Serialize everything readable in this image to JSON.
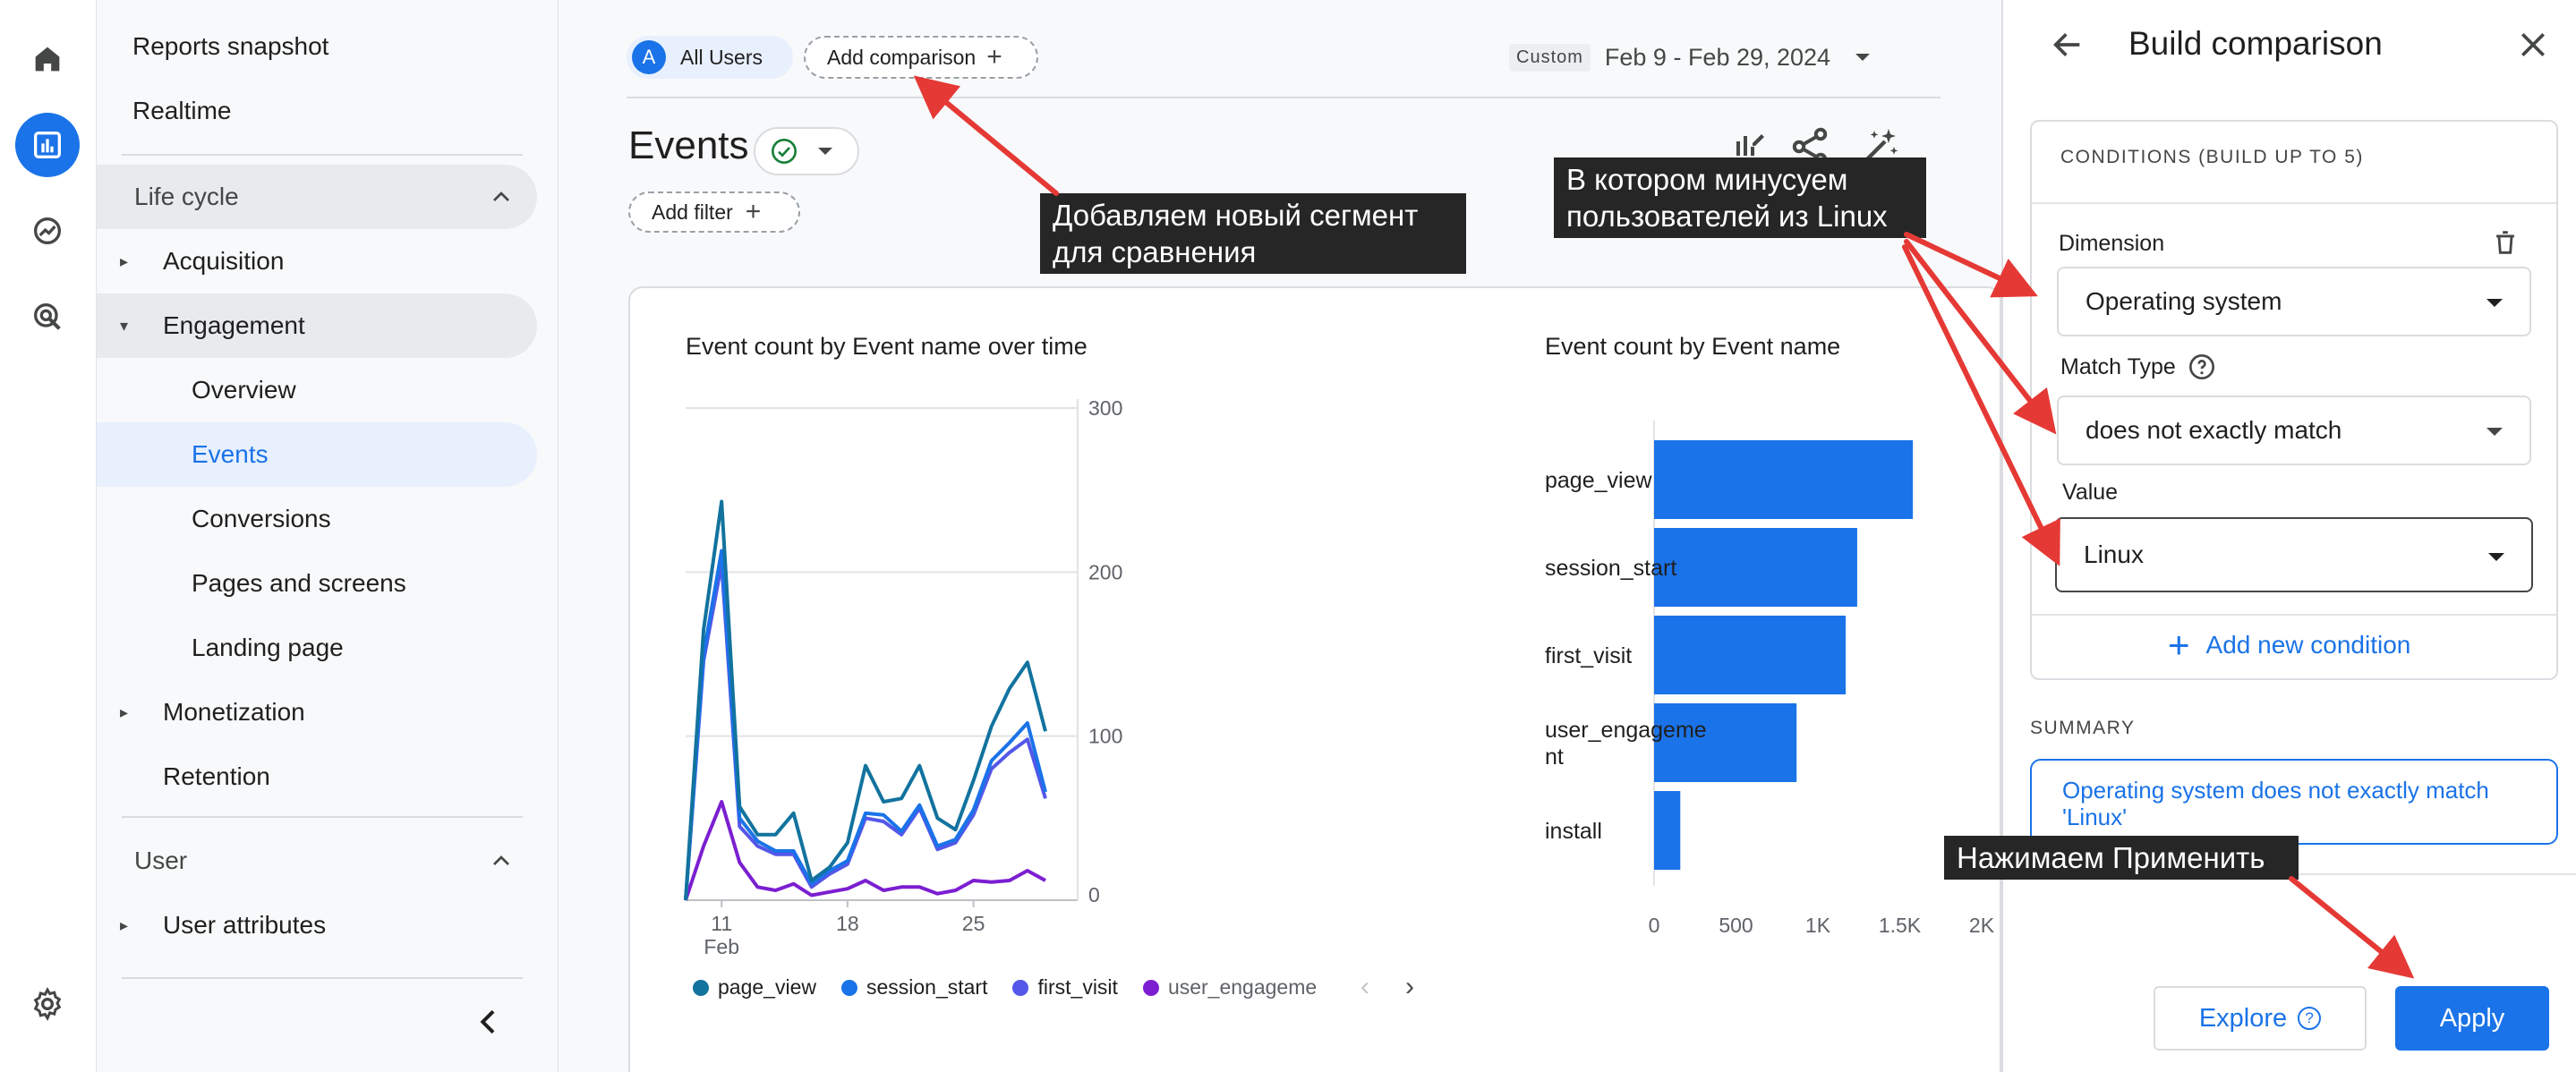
{
  "nav": {
    "top_items": [
      "Reports snapshot",
      "Realtime"
    ],
    "lifecycle": {
      "label": "Life cycle",
      "items": [
        {
          "label": "Acquisition"
        },
        {
          "label": "Engagement",
          "children": [
            "Overview",
            "Events",
            "Conversions",
            "Pages and screens",
            "Landing page"
          ]
        },
        {
          "label": "Monetization"
        },
        {
          "label": "Retention"
        }
      ],
      "selected": "Events"
    },
    "user": {
      "label": "User",
      "items": [
        "User attributes"
      ]
    }
  },
  "toolbar": {
    "segment_letter": "A",
    "segment_label": "All Users",
    "add_comparison_label": "Add comparison",
    "date_custom_tag": "Custom",
    "date_range": "Feb 9 - Feb 29, 2024"
  },
  "page": {
    "title": "Events",
    "add_filter_label": "Add filter"
  },
  "chart_data": [
    {
      "type": "line",
      "title": "Event count by Event name over time",
      "x_tick_labels": [
        "11",
        "18",
        "25"
      ],
      "x_tick_sublabel": "Feb",
      "ylim": [
        0,
        300
      ],
      "y_ticks": [
        0,
        100,
        200,
        300
      ],
      "x": [
        "Feb 9",
        "Feb 10",
        "Feb 11",
        "Feb 12",
        "Feb 13",
        "Feb 14",
        "Feb 15",
        "Feb 16",
        "Feb 17",
        "Feb 18",
        "Feb 19",
        "Feb 20",
        "Feb 21",
        "Feb 22",
        "Feb 23",
        "Feb 24",
        "Feb 25",
        "Feb 26",
        "Feb 27",
        "Feb 28",
        "Feb 29"
      ],
      "series": [
        {
          "name": "page_view",
          "color": "#12739e",
          "values": [
            0,
            165,
            243,
            57,
            40,
            40,
            53,
            12,
            20,
            35,
            82,
            60,
            62,
            82,
            50,
            43,
            73,
            106,
            129,
            145,
            103
          ]
        },
        {
          "name": "session_start",
          "color": "#1a73e8",
          "values": [
            0,
            150,
            213,
            50,
            36,
            30,
            30,
            10,
            18,
            24,
            53,
            52,
            42,
            58,
            33,
            37,
            55,
            85,
            96,
            108,
            66
          ]
        },
        {
          "name": "first_visit",
          "color": "#5457e8",
          "values": [
            0,
            146,
            205,
            45,
            33,
            28,
            28,
            8,
            16,
            22,
            50,
            48,
            40,
            56,
            31,
            35,
            52,
            80,
            90,
            98,
            62
          ]
        },
        {
          "name": "user_engagement",
          "color": "#7b1fd1",
          "values": [
            0,
            33,
            60,
            23,
            8,
            6,
            10,
            3,
            5,
            7,
            12,
            6,
            8,
            8,
            4,
            6,
            12,
            11,
            12,
            18,
            12
          ]
        }
      ],
      "legend": [
        "page_view",
        "session_start",
        "first_visit",
        "user_engageme"
      ]
    },
    {
      "type": "bar",
      "orientation": "horizontal",
      "title": "Event count by Event name",
      "categories": [
        "page_view",
        "session_start",
        "first_visit",
        "user_engageme nt",
        "install"
      ],
      "values": [
        1580,
        1240,
        1170,
        870,
        160
      ],
      "xlim": [
        0,
        2000
      ],
      "x_tick_labels": [
        "0",
        "500",
        "1K",
        "1.5K",
        "2K"
      ],
      "color": "#1a73e8"
    }
  ],
  "panel": {
    "title": "Build comparison",
    "conditions_label": "CONDITIONS (BUILD UP TO 5)",
    "dimension_label": "Dimension",
    "dimension_value": "Operating system",
    "match_type_label": "Match Type",
    "match_type_value": "does not exactly match",
    "value_label": "Value",
    "value_value": "Linux",
    "add_condition_label": "Add new condition",
    "summary_label": "SUMMARY",
    "summary_text_1": "Operating system does not exactly match",
    "summary_text_2": "'Linux'",
    "explore_label": "Explore",
    "apply_label": "Apply"
  },
  "annotations": {
    "note1_line1": "Добавляем новый сегмент",
    "note1_line2": "для сравнения",
    "note2_line1": "В котором минусуем",
    "note2_line2": "пользователей из Linux",
    "note3": "Нажимаем Применить",
    "arrow_color": "#e53935"
  }
}
